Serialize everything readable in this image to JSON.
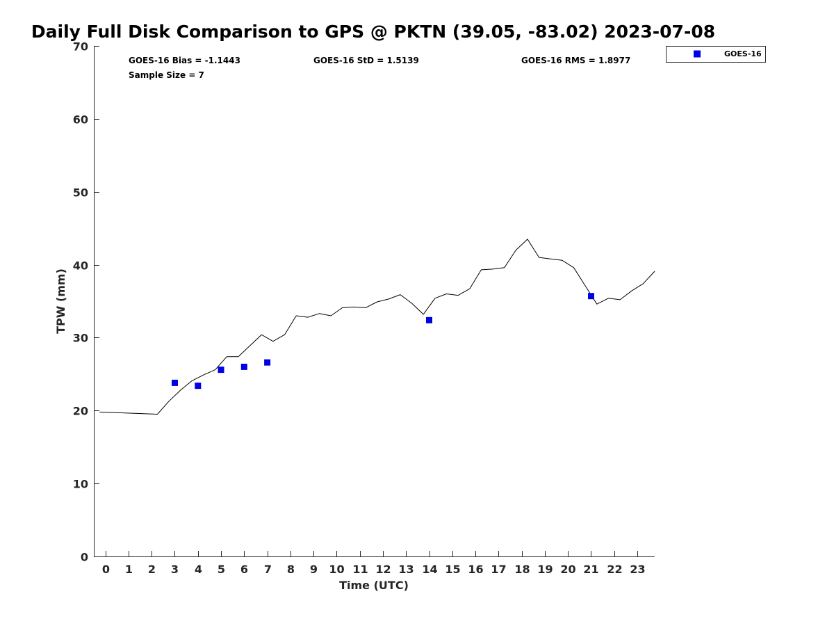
{
  "chart_data": {
    "type": "line",
    "title": "Daily Full Disk Comparison to GPS @ PKTN (39.05, -83.02) 2023-07-08",
    "xlabel": "Time (UTC)",
    "ylabel": "TPW (mm)",
    "xlim": [
      -0.5,
      23.75
    ],
    "ylim": [
      0,
      70
    ],
    "x_ticks": [
      0,
      1,
      2,
      3,
      4,
      5,
      6,
      7,
      8,
      9,
      10,
      11,
      12,
      13,
      14,
      15,
      16,
      17,
      18,
      19,
      20,
      21,
      22,
      23
    ],
    "y_ticks": [
      0,
      10,
      20,
      30,
      40,
      50,
      60,
      70
    ],
    "grid": false,
    "legend_position": "top-right (outside plot)",
    "stats": {
      "bias": "GOES-16 Bias = -1.1443",
      "std": "GOES-16 StD = 1.5139",
      "rms": "GOES-16 RMS = 1.8977",
      "sample_size": "Sample Size = 7"
    },
    "series": [
      {
        "type": "line",
        "color": "#000000",
        "x": [
          -0.25,
          2.25,
          2.75,
          3.25,
          3.75,
          4.25,
          4.75,
          5.25,
          5.75,
          6.25,
          6.75,
          7.25,
          7.75,
          8.25,
          8.75,
          9.25,
          9.75,
          10.25,
          10.75,
          11.25,
          11.75,
          12.25,
          12.75,
          13.25,
          13.75,
          14.25,
          14.75,
          15.25,
          15.75,
          16.25,
          16.75,
          17.25,
          17.75,
          18.25,
          18.75,
          19.25,
          19.75,
          20.25,
          20.75,
          21.25,
          21.75,
          22.25,
          22.75,
          23.25,
          23.75
        ],
        "y": [
          19.8,
          19.5,
          21.3,
          22.8,
          24.1,
          24.9,
          25.6,
          27.4,
          27.4,
          28.9,
          30.4,
          29.5,
          30.4,
          33.0,
          32.8,
          33.3,
          33.0,
          34.1,
          34.2,
          34.1,
          34.9,
          35.3,
          35.9,
          34.7,
          33.2,
          35.4,
          36.0,
          35.8,
          36.7,
          39.3,
          39.4,
          39.6,
          42.0,
          43.5,
          41.0,
          40.8,
          40.6,
          39.6,
          37.1,
          34.6,
          35.4,
          35.2,
          36.4,
          37.4,
          39.1
        ]
      },
      {
        "name": "GOES-16",
        "type": "scatter",
        "color": "#0000e6",
        "marker": "square",
        "x": [
          3,
          4,
          5,
          6,
          7,
          14,
          21
        ],
        "y": [
          23.8,
          23.4,
          25.6,
          26.0,
          26.6,
          32.4,
          35.7
        ]
      }
    ]
  }
}
